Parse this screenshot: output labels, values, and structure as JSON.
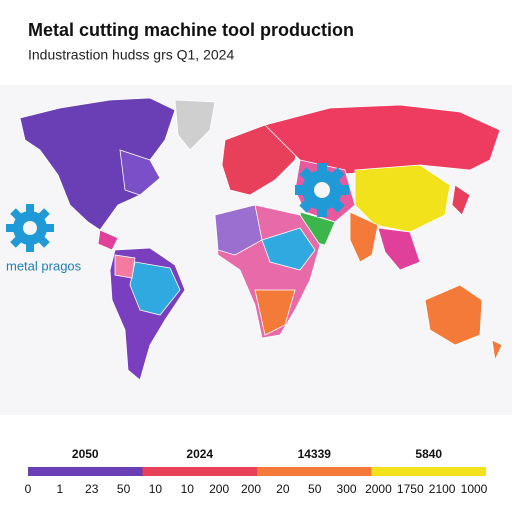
{
  "header": {
    "title": "Metal cutting machine tool production",
    "subtitle": "Industrastion hudss grs Q1, 2024"
  },
  "map": {
    "gear_label": "metal pragos"
  },
  "legend": {
    "segments": [
      {
        "label": "2050",
        "color": "#6a3fb5"
      },
      {
        "label": "2024",
        "color": "#e8405a"
      },
      {
        "label": "14339",
        "color": "#f47a3a"
      },
      {
        "label": "5840",
        "color": "#f2e21c"
      }
    ],
    "ticks": [
      "0",
      "1",
      "23",
      "50",
      "10",
      "10",
      "200",
      "200",
      "20",
      "50",
      "300",
      "2000",
      "1750",
      "2100",
      "1000"
    ]
  }
}
